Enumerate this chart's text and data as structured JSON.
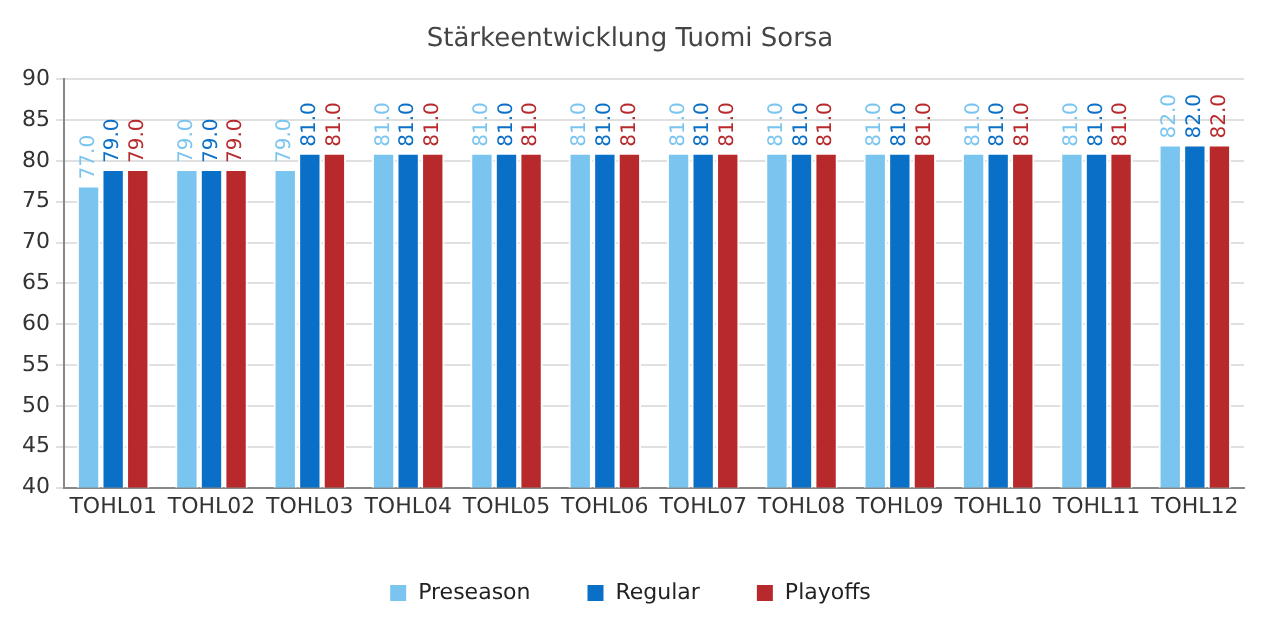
{
  "chart_data": {
    "type": "bar",
    "title": "Stärkeentwicklung Tuomi Sorsa",
    "categories": [
      "TOHL01",
      "TOHL02",
      "TOHL03",
      "TOHL04",
      "TOHL05",
      "TOHL06",
      "TOHL07",
      "TOHL08",
      "TOHL09",
      "TOHL10",
      "TOHL11",
      "TOHL12"
    ],
    "series": [
      {
        "name": "Preseason",
        "color": "#7ac5f0",
        "values": [
          77,
          79,
          79,
          81,
          81,
          81,
          81,
          81,
          81,
          81,
          81,
          82
        ],
        "value_labels": [
          "77.0",
          "79.0",
          "79.0",
          "81.0",
          "81.0",
          "81.0",
          "81.0",
          "81.0",
          "81.0",
          "81.0",
          "81.0",
          "82.0"
        ]
      },
      {
        "name": "Regular",
        "color": "#0a6fc6",
        "values": [
          79,
          79,
          81,
          81,
          81,
          81,
          81,
          81,
          81,
          81,
          81,
          82
        ],
        "value_labels": [
          "79.0",
          "79.0",
          "81.0",
          "81.0",
          "81.0",
          "81.0",
          "81.0",
          "81.0",
          "81.0",
          "81.0",
          "81.0",
          "82.0"
        ]
      },
      {
        "name": "Playoffs",
        "color": "#b8292b",
        "values": [
          79,
          79,
          81,
          81,
          81,
          81,
          81,
          81,
          81,
          81,
          81,
          82
        ],
        "value_labels": [
          "79.0",
          "79.0",
          "81.0",
          "81.0",
          "81.0",
          "81.0",
          "81.0",
          "81.0",
          "81.0",
          "81.0",
          "81.0",
          "82.0"
        ]
      }
    ],
    "ylim": [
      40,
      90
    ],
    "yticks": [
      40,
      45,
      50,
      55,
      60,
      65,
      70,
      75,
      80,
      85,
      90
    ],
    "grid": "y",
    "legend": "bottom"
  }
}
